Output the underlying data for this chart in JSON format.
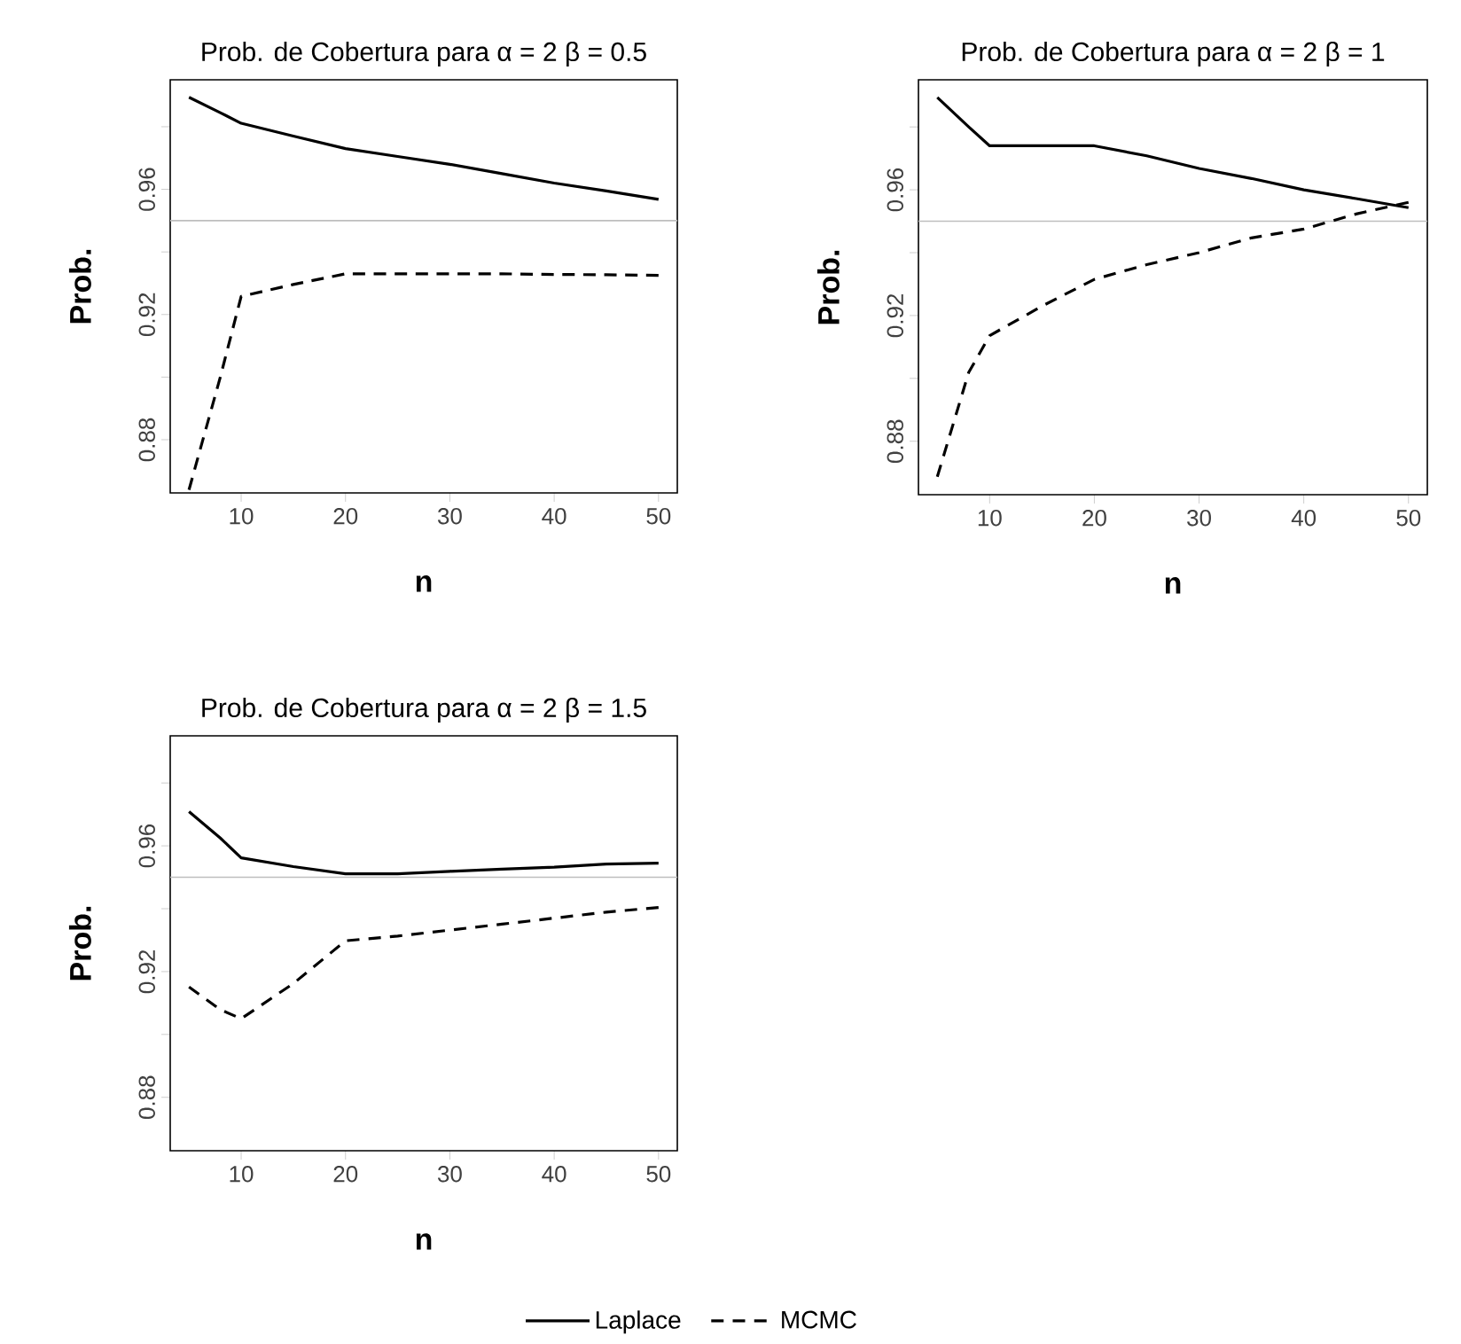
{
  "chart_data": [
    {
      "type": "line",
      "title": "Prob. de Cobertura para α = 2 β = 0.5",
      "xlabel": "n",
      "ylabel": "Prob.",
      "x": [
        5,
        8,
        10,
        15,
        20,
        25,
        30,
        35,
        40,
        45,
        50
      ],
      "xlim": [
        3.2,
        51.8
      ],
      "ylim": [
        0.863,
        0.995
      ],
      "xticks": [
        10,
        20,
        30,
        40,
        50
      ],
      "yticks": [
        0.88,
        {
          "value": 0.9,
          "label": null
        },
        0.92,
        {
          "value": 0.94,
          "label": null
        },
        0.96,
        {
          "value": 0.98,
          "label": null
        }
      ],
      "ref_lines": [
        {
          "axis": "y",
          "value": 0.95,
          "color": "#bebebe"
        }
      ],
      "series": [
        {
          "color": "#000000",
          "line_style": "solid",
          "values": [
            0.9894,
            0.9845,
            0.9811,
            0.977,
            0.973,
            0.9705,
            0.968,
            0.965,
            0.962,
            0.9595,
            0.9568
          ]
        },
        {
          "color": "#000000",
          "line_style": "dashed",
          "values": [
            0.864,
            0.9,
            0.9258,
            0.9296,
            0.933,
            0.933,
            0.933,
            0.933,
            0.9328,
            0.9327,
            0.9325
          ]
        }
      ]
    },
    {
      "type": "line",
      "title": "Prob. de Cobertura para α = 2 β = 1",
      "xlabel": "n",
      "ylabel": "Prob.",
      "x": [
        5,
        8,
        10,
        15,
        20,
        25,
        30,
        35,
        40,
        45,
        50
      ],
      "xlim": [
        3.2,
        51.8
      ],
      "ylim": [
        0.863,
        0.995
      ],
      "xticks": [
        10,
        20,
        30,
        40,
        50
      ],
      "yticks": [
        0.88,
        {
          "value": 0.9,
          "label": null
        },
        0.92,
        {
          "value": 0.94,
          "label": null
        },
        0.96,
        {
          "value": 0.98,
          "label": null
        }
      ],
      "ref_lines": [
        {
          "axis": "y",
          "value": 0.95,
          "color": "#bebebe"
        }
      ],
      "series": [
        {
          "color": "#000000",
          "line_style": "solid",
          "values": [
            0.9894,
            0.98,
            0.974,
            0.974,
            0.974,
            0.9708,
            0.9668,
            0.9636,
            0.96,
            0.9572,
            0.9543
          ]
        },
        {
          "color": "#000000",
          "line_style": "dashed",
          "values": [
            0.8687,
            0.9019,
            0.9136,
            0.923,
            0.9315,
            0.9362,
            0.94,
            0.9447,
            0.9475,
            0.9523,
            0.956
          ]
        }
      ]
    },
    {
      "type": "line",
      "title": "Prob. de Cobertura para α = 2 β = 1.5",
      "xlabel": "n",
      "ylabel": "Prob.",
      "x": [
        5,
        8,
        10,
        15,
        20,
        25,
        30,
        35,
        40,
        45,
        50
      ],
      "xlim": [
        3.2,
        51.8
      ],
      "ylim": [
        0.863,
        0.995
      ],
      "xticks": [
        10,
        20,
        30,
        40,
        50
      ],
      "yticks": [
        0.88,
        {
          "value": 0.9,
          "label": null
        },
        0.92,
        {
          "value": 0.94,
          "label": null
        },
        0.96,
        {
          "value": 0.98,
          "label": null
        }
      ],
      "ref_lines": [
        {
          "axis": "y",
          "value": 0.95,
          "color": "#bebebe"
        }
      ],
      "legend": "bottom",
      "series": [
        {
          "name": "Laplace",
          "color": "#000000",
          "line_style": "solid",
          "values": [
            0.9709,
            0.9625,
            0.9562,
            0.9534,
            0.9511,
            0.9511,
            0.9519,
            0.9526,
            0.9532,
            0.9542,
            0.9545
          ]
        },
        {
          "name": "MCMC",
          "color": "#000000",
          "line_style": "dashed",
          "values": [
            0.9151,
            0.9079,
            0.905,
            0.9162,
            0.9298,
            0.9313,
            0.9332,
            0.9351,
            0.937,
            0.9389,
            0.9404
          ]
        }
      ]
    }
  ]
}
